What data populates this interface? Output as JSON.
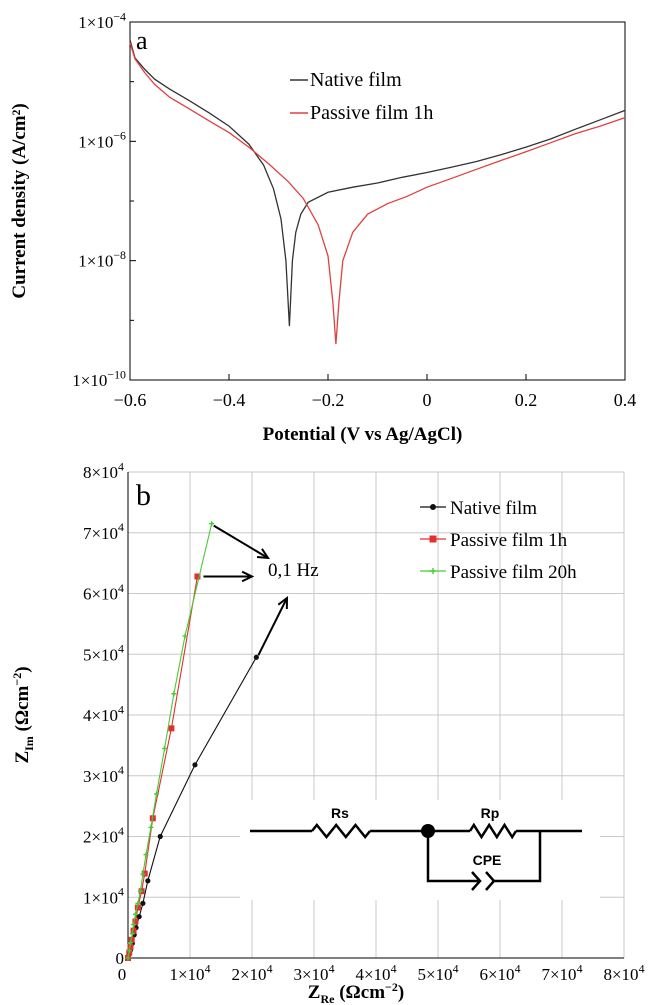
{
  "chart_data": [
    {
      "panel": "a",
      "type": "line",
      "yscale": "log",
      "xlabel": "Potential (V vs Ag/AgCl)",
      "ylabel": "Current density (A/cm²)",
      "xlim": [
        -0.6,
        0.4
      ],
      "ylim": [
        1e-10,
        0.0001
      ],
      "xticks": [
        -0.6,
        -0.4,
        -0.2,
        0,
        0.2,
        0.4
      ],
      "xtick_labels": [
        "−0.6",
        "−0.4",
        "−0.2",
        "0",
        "0.2",
        "0.4"
      ],
      "ytick_labels": [
        {
          "mant": "1×10",
          "exp": "−4",
          "value": 0.0001
        },
        {
          "mant": "1×10",
          "exp": "−6",
          "value": 1e-06
        },
        {
          "mant": "1×10",
          "exp": "−8",
          "value": 1e-08
        },
        {
          "mant": "1×10",
          "exp": "−10",
          "value": 1e-10
        }
      ],
      "legend_position": "top-right",
      "grid": false,
      "series": [
        {
          "name": "Native film",
          "color": "#333333",
          "points": [
            [
              -0.6,
              5e-05
            ],
            [
              -0.59,
              2.5e-05
            ],
            [
              -0.57,
              1.6e-05
            ],
            [
              -0.55,
              1.1e-05
            ],
            [
              -0.52,
              7.5e-06
            ],
            [
              -0.48,
              4.8e-06
            ],
            [
              -0.44,
              3e-06
            ],
            [
              -0.4,
              1.8e-06
            ],
            [
              -0.36,
              9e-07
            ],
            [
              -0.33,
              4e-07
            ],
            [
              -0.31,
              1.6e-07
            ],
            [
              -0.295,
              5e-08
            ],
            [
              -0.285,
              1e-08
            ],
            [
              -0.278,
              8e-10
            ],
            [
              -0.272,
              1e-08
            ],
            [
              -0.265,
              3e-08
            ],
            [
              -0.255,
              6e-08
            ],
            [
              -0.24,
              9.5e-08
            ],
            [
              -0.2,
              1.4e-07
            ],
            [
              -0.15,
              1.7e-07
            ],
            [
              -0.1,
              2e-07
            ],
            [
              -0.05,
              2.5e-07
            ],
            [
              0.0,
              3e-07
            ],
            [
              0.05,
              3.7e-07
            ],
            [
              0.1,
              4.6e-07
            ],
            [
              0.15,
              6e-07
            ],
            [
              0.2,
              8e-07
            ],
            [
              0.25,
              1.1e-06
            ],
            [
              0.3,
              1.6e-06
            ],
            [
              0.35,
              2.3e-06
            ],
            [
              0.4,
              3.3e-06
            ]
          ]
        },
        {
          "name": "Passive film 1h",
          "color": "#e04040",
          "points": [
            [
              -0.6,
              4.5e-05
            ],
            [
              -0.59,
              2.4e-05
            ],
            [
              -0.57,
              1.4e-05
            ],
            [
              -0.55,
              9e-06
            ],
            [
              -0.52,
              5.5e-06
            ],
            [
              -0.48,
              3.5e-06
            ],
            [
              -0.44,
              2.2e-06
            ],
            [
              -0.4,
              1.4e-06
            ],
            [
              -0.36,
              8e-07
            ],
            [
              -0.32,
              4.2e-07
            ],
            [
              -0.28,
              2.1e-07
            ],
            [
              -0.25,
              1.1e-07
            ],
            [
              -0.22,
              4e-08
            ],
            [
              -0.2,
              1.2e-08
            ],
            [
              -0.19,
              2e-09
            ],
            [
              -0.184,
              4e-10
            ],
            [
              -0.178,
              2e-09
            ],
            [
              -0.17,
              1e-08
            ],
            [
              -0.15,
              3e-08
            ],
            [
              -0.12,
              6e-08
            ],
            [
              -0.08,
              9e-08
            ],
            [
              -0.04,
              1.2e-07
            ],
            [
              0.0,
              1.7e-07
            ],
            [
              0.05,
              2.4e-07
            ],
            [
              0.1,
              3.4e-07
            ],
            [
              0.15,
              4.8e-07
            ],
            [
              0.2,
              6.7e-07
            ],
            [
              0.25,
              9.5e-07
            ],
            [
              0.3,
              1.35e-06
            ],
            [
              0.35,
              1.8e-06
            ],
            [
              0.4,
              2.5e-06
            ]
          ]
        }
      ]
    },
    {
      "panel": "b",
      "type": "scatter",
      "xlabel": "ZRe (Ωcm⁻²)",
      "ylabel": "ZIm (Ωcm⁻²)",
      "xlim": [
        0,
        80000
      ],
      "ylim": [
        0,
        80000
      ],
      "grid": true,
      "legend_position": "top-right",
      "xtick_labels": [
        {
          "mant": "0",
          "exp": "",
          "value": 0
        },
        {
          "mant": "1×10",
          "exp": "4",
          "value": 10000
        },
        {
          "mant": "2×10",
          "exp": "4",
          "value": 20000
        },
        {
          "mant": "3×10",
          "exp": "4",
          "value": 30000
        },
        {
          "mant": "4×10",
          "exp": "4",
          "value": 40000
        },
        {
          "mant": "5×10",
          "exp": "4",
          "value": 50000
        },
        {
          "mant": "6×10",
          "exp": "4",
          "value": 60000
        },
        {
          "mant": "7×10",
          "exp": "4",
          "value": 70000
        },
        {
          "mant": "8×10",
          "exp": "4",
          "value": 80000
        }
      ],
      "ytick_labels": [
        {
          "mant": "0",
          "exp": "",
          "value": 0
        },
        {
          "mant": "1×10",
          "exp": "4",
          "value": 10000
        },
        {
          "mant": "2×10",
          "exp": "4",
          "value": 20000
        },
        {
          "mant": "3×10",
          "exp": "4",
          "value": 30000
        },
        {
          "mant": "4×10",
          "exp": "4",
          "value": 40000
        },
        {
          "mant": "5×10",
          "exp": "4",
          "value": 50000
        },
        {
          "mant": "6×10",
          "exp": "4",
          "value": 60000
        },
        {
          "mant": "7×10",
          "exp": "4",
          "value": 70000
        },
        {
          "mant": "8×10",
          "exp": "4",
          "value": 80000
        }
      ],
      "series": [
        {
          "name": "Native film",
          "color": "#111111",
          "marker": "circle",
          "points": [
            [
              0,
              0
            ],
            [
              200,
              600
            ],
            [
              400,
              1300
            ],
            [
              700,
              2400
            ],
            [
              1000,
              3800
            ],
            [
              1300,
              5000
            ],
            [
              1800,
              6800
            ],
            [
              2400,
              9000
            ],
            [
              3200,
              12700
            ],
            [
              5200,
              20000
            ],
            [
              10800,
              31800
            ],
            [
              20700,
              49500
            ]
          ]
        },
        {
          "name": "Passive film 1h",
          "color": "#e03030",
          "marker": "square",
          "points": [
            [
              0,
              0
            ],
            [
              200,
              900
            ],
            [
              400,
              1800
            ],
            [
              600,
              3000
            ],
            [
              900,
              4500
            ],
            [
              1200,
              6000
            ],
            [
              1600,
              8300
            ],
            [
              2200,
              11000
            ],
            [
              2700,
              13900
            ],
            [
              4000,
              23000
            ],
            [
              7000,
              37800
            ],
            [
              11200,
              62800
            ]
          ]
        },
        {
          "name": "Passive film 20h",
          "color": "#44cc33",
          "marker": "plus",
          "points": [
            [
              0,
              0
            ],
            [
              200,
              1200
            ],
            [
              400,
              2500
            ],
            [
              700,
              4000
            ],
            [
              900,
              5500
            ],
            [
              1200,
              7200
            ],
            [
              1600,
              9000
            ],
            [
              2000,
              11000
            ],
            [
              2400,
              13800
            ],
            [
              2900,
              17000
            ],
            [
              3700,
              21500
            ],
            [
              4600,
              27000
            ],
            [
              5900,
              34500
            ],
            [
              7400,
              43500
            ],
            [
              9200,
              53000
            ],
            [
              13500,
              71500
            ]
          ]
        }
      ],
      "annotation": "0,1 Hz",
      "circuit": {
        "labels": [
          "Rs",
          "Rp",
          "CPE"
        ]
      }
    }
  ],
  "panel_labels": [
    "a",
    "b"
  ]
}
